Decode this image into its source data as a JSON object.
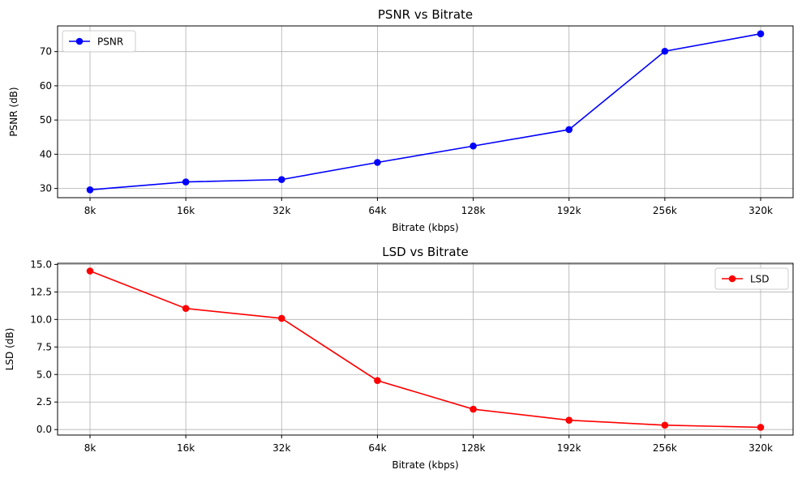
{
  "chart_data": [
    {
      "type": "line",
      "title": "PSNR vs Bitrate",
      "xlabel": "Bitrate (kbps)",
      "ylabel": "PSNR (dB)",
      "categories": [
        "8k",
        "16k",
        "32k",
        "64k",
        "128k",
        "192k",
        "256k",
        "320k"
      ],
      "series": [
        {
          "name": "PSNR",
          "color": "#0000ff",
          "values": [
            29.6,
            31.9,
            32.6,
            37.6,
            42.4,
            47.2,
            70.1,
            75.2
          ]
        }
      ],
      "yticks": [
        30,
        40,
        50,
        60,
        70
      ],
      "ytick_labels": [
        "30",
        "40",
        "50",
        "60",
        "70"
      ],
      "ylim": [
        27.3,
        77.5
      ],
      "grid": true,
      "legend_position": "upper-left"
    },
    {
      "type": "line",
      "title": "LSD vs Bitrate",
      "xlabel": "Bitrate (kbps)",
      "ylabel": "LSD (dB)",
      "categories": [
        "8k",
        "16k",
        "32k",
        "64k",
        "128k",
        "192k",
        "256k",
        "320k"
      ],
      "series": [
        {
          "name": "LSD",
          "color": "#ff0000",
          "values": [
            14.4,
            11.0,
            10.1,
            4.45,
            1.85,
            0.85,
            0.4,
            0.2
          ]
        }
      ],
      "yticks": [
        0,
        2.5,
        5,
        7.5,
        10,
        12.5,
        15
      ],
      "ytick_labels": [
        "0.0",
        "2.5",
        "5.0",
        "7.5",
        "10.0",
        "12.5",
        "15.0"
      ],
      "ylim": [
        -0.5,
        15.1
      ],
      "grid": true,
      "legend_position": "upper-right"
    }
  ]
}
